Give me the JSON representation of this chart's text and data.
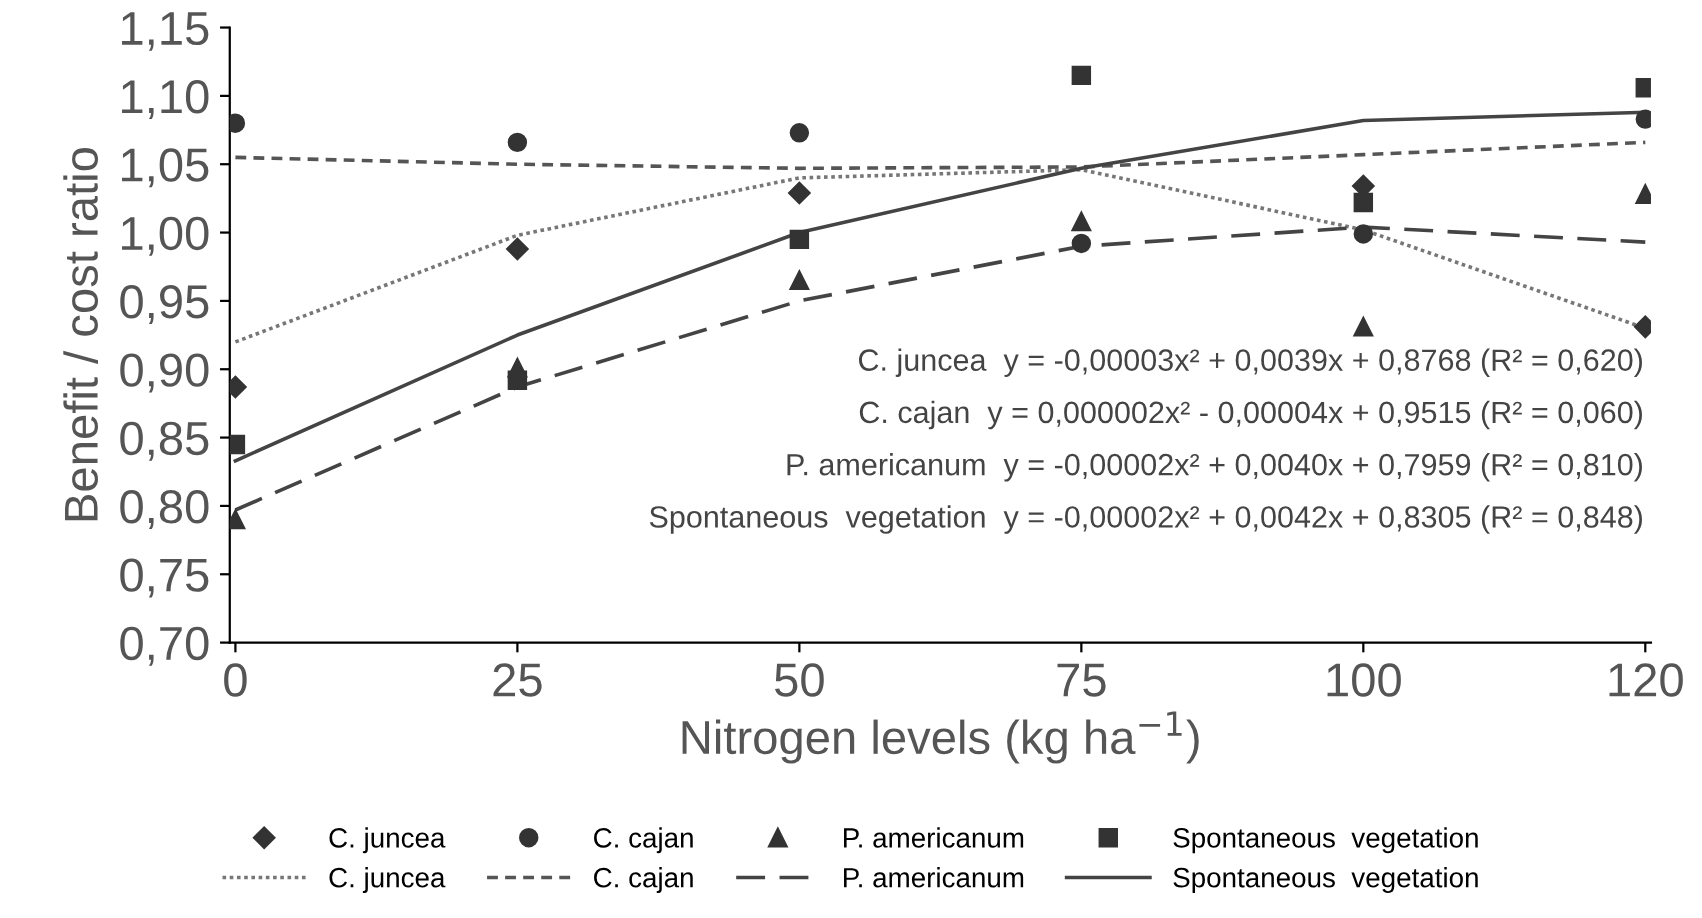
{
  "chart_data": {
    "type": "scatter",
    "xlabel": "Nitrogen levels (kg ha$^{−1}$)",
    "ylabel": "Benefit / cost ratio",
    "categories": [
      "0",
      "25",
      "50",
      "75",
      "100",
      "120"
    ],
    "ylim": [
      0.7,
      1.15
    ],
    "yticks": [
      {
        "value": 0.7,
        "label": "0,70"
      },
      {
        "value": 0.75,
        "label": "0,75"
      },
      {
        "value": 0.8,
        "label": "0,80"
      },
      {
        "value": 0.85,
        "label": "0,85"
      },
      {
        "value": 0.9,
        "label": "0,90"
      },
      {
        "value": 0.95,
        "label": "0,95"
      },
      {
        "value": 1.0,
        "label": "1,00"
      },
      {
        "value": 1.05,
        "label": "1,05"
      },
      {
        "value": 1.1,
        "label": "1,10"
      },
      {
        "value": 1.15,
        "label": "1,15"
      }
    ],
    "grid": false,
    "legend": "bottom",
    "series": [
      {
        "name": "C. juncea",
        "marker": "diamond",
        "color": "#333333",
        "values": [
          0.887,
          0.988,
          1.029,
          null,
          1.034,
          0.931
        ]
      },
      {
        "name": "C. cajan",
        "marker": "circle",
        "color": "#333333",
        "values": [
          1.08,
          1.066,
          1.073,
          0.992,
          0.999,
          1.083
        ]
      },
      {
        "name": "P. americanum",
        "marker": "triangle",
        "color": "#333333",
        "values": [
          0.79,
          0.901,
          0.965,
          1.008,
          0.931,
          1.028
        ]
      },
      {
        "name": "Spontaneous  vegetation",
        "marker": "square",
        "color": "#333333",
        "values": [
          0.845,
          0.892,
          0.995,
          1.115,
          1.022,
          1.106
        ]
      },
      {
        "name": "C. juncea",
        "type": "line",
        "line_style": "dotted",
        "color": "#777777",
        "values": [
          0.92,
          0.998,
          1.04,
          1.046,
          1.002,
          0.93
        ]
      },
      {
        "name": "C. cajan",
        "type": "line",
        "line_style": "dashed",
        "color": "#555555",
        "values": [
          1.055,
          1.05,
          1.047,
          1.048,
          1.057,
          1.066
        ]
      },
      {
        "name": "P. americanum",
        "type": "line",
        "line_style": "longdash",
        "color": "#444444",
        "values": [
          0.797,
          0.887,
          0.95,
          0.99,
          1.004,
          0.993
        ]
      },
      {
        "name": "Spontaneous  vegetation",
        "type": "line",
        "line_style": "solid",
        "color": "#444444",
        "values": [
          0.833,
          0.925,
          1.0,
          1.047,
          1.082,
          1.088
        ]
      }
    ],
    "annotations": [
      "C. juncea  y = -0,00003x² + 0,0039x + 0,8768 (R² = 0,620)",
      "C. cajan  y = 0,000002x² - 0,00004x + 0,9515 (R² = 0,060)",
      "P. americanum  y = -0,00002x² + 0,0040x + 0,7959 (R² = 0,810)",
      "Spontaneous  vegetation  y = -0,00002x² + 0,0042x + 0,8305 (R² = 0,848)"
    ]
  }
}
